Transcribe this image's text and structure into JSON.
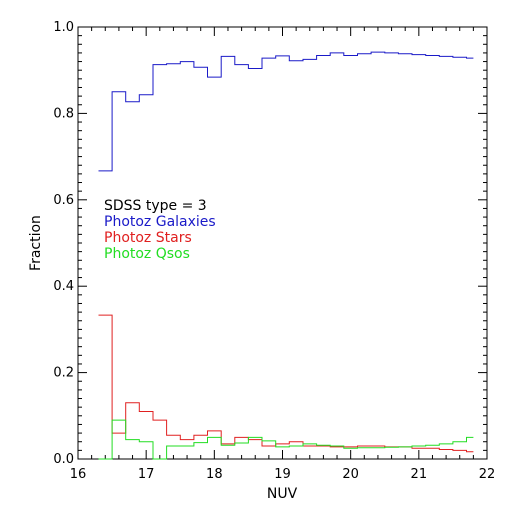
{
  "chart_data": {
    "type": "line",
    "step": true,
    "title": "",
    "xlabel": "NUV",
    "ylabel": "Fraction",
    "xlim": [
      16,
      22
    ],
    "ylim": [
      0,
      1
    ],
    "xticks": [
      16,
      17,
      18,
      19,
      20,
      21,
      22
    ],
    "yticks": [
      0.0,
      0.2,
      0.4,
      0.6,
      0.8,
      1.0
    ],
    "xtick_labels": [
      "16",
      "17",
      "18",
      "19",
      "20",
      "21",
      "22"
    ],
    "ytick_labels": [
      "0.0",
      "0.2",
      "0.4",
      "0.6",
      "0.8",
      "1.0"
    ],
    "grid": false,
    "legend_header": "SDSS type = 3",
    "legend_position": "center-left",
    "bin_edges": [
      16.3,
      16.5,
      16.7,
      16.9,
      17.1,
      17.3,
      17.5,
      17.7,
      17.9,
      18.1,
      18.3,
      18.5,
      18.7,
      18.9,
      19.1,
      19.3,
      19.5,
      19.7,
      19.9,
      20.1,
      20.3,
      20.5,
      20.7,
      20.9,
      21.1,
      21.3,
      21.5,
      21.7,
      21.8
    ],
    "series": [
      {
        "name": "Photoz Galaxies",
        "color": "#1a1ac8",
        "values": [
          0.667,
          0.85,
          0.827,
          0.843,
          0.913,
          0.915,
          0.92,
          0.907,
          0.884,
          0.932,
          0.913,
          0.904,
          0.928,
          0.933,
          0.922,
          0.925,
          0.934,
          0.94,
          0.934,
          0.938,
          0.942,
          0.94,
          0.938,
          0.936,
          0.934,
          0.932,
          0.93,
          0.928
        ]
      },
      {
        "name": "Photoz Stars",
        "color": "#e02020",
        "values": [
          0.333,
          0.06,
          0.13,
          0.11,
          0.09,
          0.055,
          0.045,
          0.055,
          0.065,
          0.035,
          0.05,
          0.045,
          0.03,
          0.035,
          0.04,
          0.03,
          0.03,
          0.028,
          0.028,
          0.03,
          0.03,
          0.028,
          0.028,
          0.025,
          0.025,
          0.022,
          0.02,
          0.017
        ]
      },
      {
        "name": "Photoz Qsos",
        "color": "#22dd22",
        "values": [
          0.0,
          0.09,
          0.045,
          0.04,
          0.0,
          0.03,
          0.03,
          0.038,
          0.05,
          0.032,
          0.037,
          0.05,
          0.042,
          0.028,
          0.03,
          0.035,
          0.032,
          0.03,
          0.025,
          0.026,
          0.026,
          0.027,
          0.028,
          0.03,
          0.032,
          0.035,
          0.04,
          0.05
        ]
      }
    ]
  }
}
